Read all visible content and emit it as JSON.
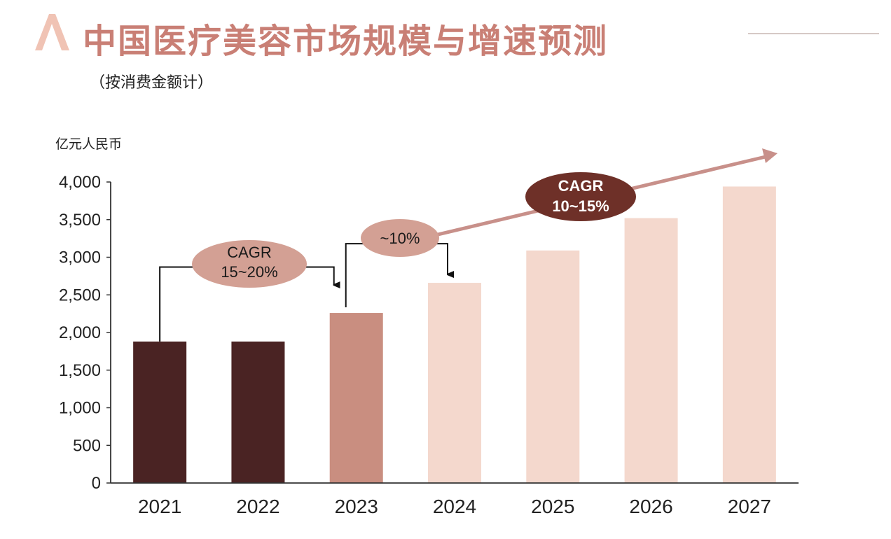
{
  "chart_data": {
    "type": "bar",
    "title": "中国医疗美容市场规模与增速预测",
    "subtitle": "（按消费金额计）",
    "ylabel": "亿元人民币",
    "xlabel": "",
    "ylim": [
      0,
      4000
    ],
    "yticks": [
      0,
      500,
      1000,
      1500,
      2000,
      2500,
      3000,
      3500,
      4000
    ],
    "ytick_labels": [
      "0",
      "500",
      "1,000",
      "1,500",
      "2,000",
      "2,500",
      "3,000",
      "3,500",
      "4,000"
    ],
    "categories": [
      "2021",
      "2022",
      "2023",
      "2024",
      "2025",
      "2026",
      "2027"
    ],
    "values": [
      1880,
      1880,
      2260,
      2660,
      3090,
      3520,
      3940
    ],
    "bar_colors": [
      "#4a2323",
      "#4a2323",
      "#c98e80",
      "#f4d8cd",
      "#f4d8cd",
      "#f4d8cd",
      "#f4d8cd"
    ],
    "annotations": [
      {
        "id": "cagr1",
        "label_line1": "CAGR",
        "label_line2": "15~20%"
      },
      {
        "id": "growth2024",
        "label_line1": "~10%",
        "label_line2": ""
      },
      {
        "id": "cagr2",
        "label_line1": "CAGR",
        "label_line2": "10~15%"
      }
    ]
  },
  "colors": {
    "title": "#c97f75",
    "logo": "#f0c3b4",
    "axis": "#333333",
    "text": "#222222",
    "bubble_light": "#d3a094",
    "bubble_dark": "#6e3028",
    "trend_arrow": "#c8908a",
    "header_line": "#d6c9c6"
  }
}
